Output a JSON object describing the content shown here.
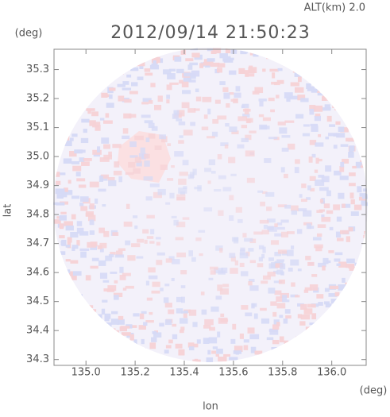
{
  "chart_data": {
    "type": "field",
    "title": "2012/09/14 21:50:23",
    "subtitle": "ALT(km) 2.0",
    "x_label": "lon",
    "y_label": "lat",
    "x_unit": "(deg)",
    "y_unit": "(deg)",
    "xlim": [
      134.87,
      136.14
    ],
    "ylim": [
      34.28,
      35.37
    ],
    "xticks": [
      {
        "value": 135,
        "label": "135.0"
      },
      135.2,
      135.4,
      135.6,
      135.8,
      {
        "value": 136,
        "label": "136.0"
      }
    ],
    "yticks": [
      34.3,
      34.4,
      34.5,
      34.6,
      34.7,
      34.8,
      34.9,
      {
        "value": 35,
        "label": "35.0"
      },
      35.1,
      35.2,
      35.3
    ]
  }
}
